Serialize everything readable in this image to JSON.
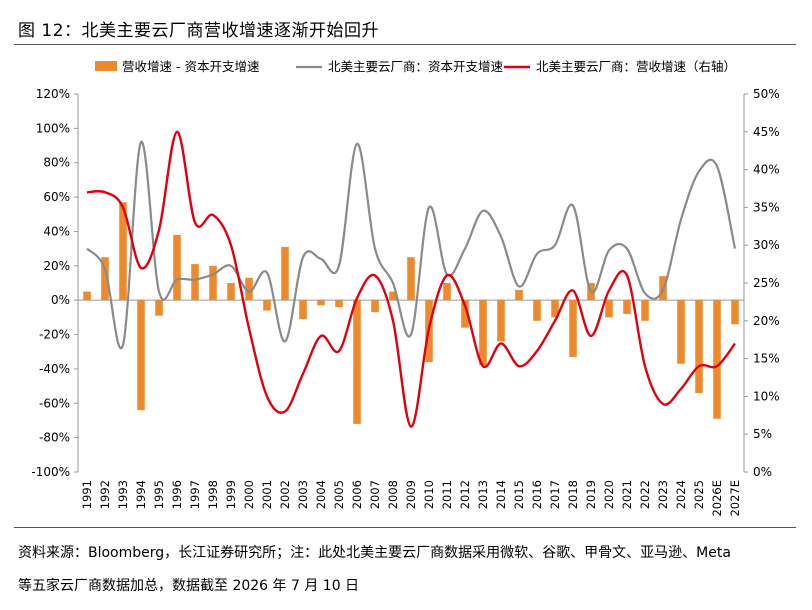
{
  "figure": {
    "title": "图 12：北美主要云厂商营收增速逐渐开始回升"
  },
  "source_note": {
    "line1": "资料来源：Bloomberg，长江证券研究所；注：此处北美主要云厂商数据采用微软、谷歌、甲骨文、亚马逊、Meta",
    "line2": "等五家云厂商数据加总，数据截至 2026 年 7 月 10 日"
  },
  "chart_data": {
    "type": "bar",
    "categories": [
      "1991",
      "1992",
      "1993",
      "1994",
      "1995",
      "1996",
      "1997",
      "1998",
      "1999",
      "2000",
      "2001",
      "2002",
      "2003",
      "2004",
      "2005",
      "2006",
      "2007",
      "2008",
      "2009",
      "2010",
      "2011",
      "2012",
      "2013",
      "2014",
      "2015",
      "2016",
      "2017",
      "2018",
      "2019",
      "2020",
      "2021",
      "2022",
      "2023",
      "2024",
      "2025",
      "2026E",
      "2027E"
    ],
    "y_left": {
      "ylim": [
        -100,
        120
      ],
      "ticks": [
        "-100%",
        "-80%",
        "-60%",
        "-40%",
        "-20%",
        "0%",
        "20%",
        "40%",
        "60%",
        "80%",
        "100%",
        "120%"
      ]
    },
    "y_right": {
      "ylim": [
        0,
        50
      ],
      "ticks": [
        "0%",
        "5%",
        "10%",
        "15%",
        "20%",
        "25%",
        "30%",
        "35%",
        "40%",
        "45%",
        "50%"
      ]
    },
    "legend_position": "top",
    "series": [
      {
        "name": "营收增速 - 资本开支增速",
        "type": "bar",
        "axis": "left",
        "color": "#EE8A2E",
        "values": [
          5,
          25,
          57,
          -64,
          -9,
          38,
          21,
          20,
          10,
          13,
          -6,
          31,
          -11,
          -3,
          -4,
          -72,
          -7,
          5,
          25,
          -36,
          10,
          -16,
          -38,
          -24,
          6,
          -12,
          -10,
          -33,
          10,
          -10,
          -8,
          -12,
          14,
          -37,
          -54,
          -69,
          -14
        ]
      },
      {
        "name": "北美主要云厂商：资本开支增速",
        "type": "line",
        "axis": "left",
        "color": "#8A8A8A",
        "values": [
          30,
          18,
          -26,
          92,
          5,
          12,
          12,
          15,
          20,
          5,
          16,
          -24,
          25,
          24,
          20,
          91,
          30,
          10,
          -20,
          54,
          15,
          30,
          52,
          37,
          8,
          27,
          32,
          55,
          5,
          29,
          30,
          4,
          6,
          47,
          75,
          78,
          30
        ]
      },
      {
        "name": "北美主要云厂商：营收增速（右轴）",
        "type": "line",
        "axis": "right",
        "color": "#E00010",
        "values": [
          37,
          37,
          35,
          27,
          32,
          45,
          33,
          34,
          30,
          19,
          10,
          8,
          13,
          18,
          16,
          23,
          26,
          20,
          6,
          19,
          26,
          22,
          14,
          17,
          14,
          16,
          20,
          24,
          18,
          24,
          26,
          14,
          9,
          11,
          14,
          14,
          17
        ]
      }
    ]
  }
}
